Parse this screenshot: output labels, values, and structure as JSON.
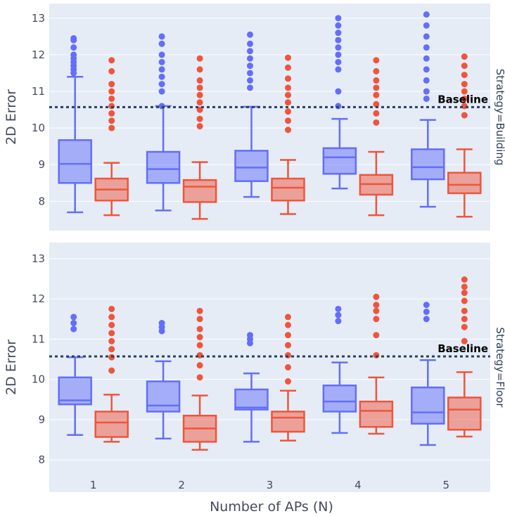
{
  "chart_data": {
    "type": "box",
    "xlabel": "Number of APs (N)",
    "ylabel": "2D Error",
    "categories": [
      "1",
      "2",
      "3",
      "4",
      "5"
    ],
    "ylim": [
      7.2,
      13.4
    ],
    "yticks": [
      8,
      9,
      10,
      11,
      12,
      13
    ],
    "colors": {
      "series_a": "#636efa",
      "series_b": "#ef553b",
      "plot_bg": "#e5ecf6",
      "baseline": "#2a3f5f"
    },
    "annotation": "Baseline",
    "panels": [
      {
        "facet_label": "Strategy=Building",
        "baseline": 10.57,
        "series": [
          {
            "name": "series_a",
            "boxes": [
              {
                "min": 7.7,
                "q1": 8.5,
                "median": 9.02,
                "q3": 9.67,
                "max": 11.4,
                "outliers": [
                  11.5,
                  11.6,
                  11.7,
                  11.8,
                  11.9,
                  12.0,
                  12.2,
                  12.4,
                  12.45
                ]
              },
              {
                "min": 7.75,
                "q1": 8.5,
                "median": 8.88,
                "q3": 9.35,
                "max": 10.6,
                "outliers": [
                  10.6,
                  11.0,
                  11.2,
                  11.4,
                  11.6,
                  11.8,
                  12.0,
                  12.3,
                  12.5
                ]
              },
              {
                "min": 8.12,
                "q1": 8.55,
                "median": 8.92,
                "q3": 9.38,
                "max": 10.58,
                "outliers": [
                  11.1,
                  11.3,
                  11.5,
                  11.7,
                  11.9,
                  12.1,
                  12.3,
                  12.55
                ]
              },
              {
                "min": 8.35,
                "q1": 8.75,
                "median": 9.2,
                "q3": 9.45,
                "max": 10.25,
                "outliers": [
                  10.6,
                  11.0,
                  11.6,
                  11.8,
                  12.0,
                  12.2,
                  12.4,
                  12.6,
                  12.8,
                  13.0
                ]
              },
              {
                "min": 7.85,
                "q1": 8.6,
                "median": 8.93,
                "q3": 9.42,
                "max": 10.22,
                "outliers": [
                  10.8,
                  11.0,
                  11.3,
                  11.6,
                  11.9,
                  12.2,
                  12.5,
                  12.8,
                  13.1
                ]
              }
            ]
          },
          {
            "name": "series_b",
            "boxes": [
              {
                "min": 7.62,
                "q1": 8.02,
                "median": 8.32,
                "q3": 8.62,
                "max": 9.05,
                "outliers": [
                  10.0,
                  10.2,
                  10.4,
                  10.6,
                  10.8,
                  11.0,
                  11.2,
                  11.55,
                  11.85
                ]
              },
              {
                "min": 7.52,
                "q1": 7.98,
                "median": 8.4,
                "q3": 8.58,
                "max": 9.07,
                "outliers": [
                  10.05,
                  10.25,
                  10.5,
                  10.7,
                  10.9,
                  11.1,
                  11.3,
                  11.6,
                  11.9
                ]
              },
              {
                "min": 7.65,
                "q1": 8.02,
                "median": 8.37,
                "q3": 8.62,
                "max": 9.13,
                "outliers": [
                  9.95,
                  10.2,
                  10.45,
                  10.7,
                  10.9,
                  11.1,
                  11.35,
                  11.65,
                  11.92
                ]
              },
              {
                "min": 7.62,
                "q1": 8.18,
                "median": 8.47,
                "q3": 8.72,
                "max": 9.35,
                "outliers": [
                  10.15,
                  10.4,
                  10.65,
                  10.9,
                  11.1,
                  11.3,
                  11.55,
                  11.85
                ]
              },
              {
                "min": 7.58,
                "q1": 8.22,
                "median": 8.45,
                "q3": 8.78,
                "max": 9.42,
                "outliers": [
                  10.35,
                  10.6,
                  10.8,
                  11.0,
                  11.2,
                  11.45,
                  11.7,
                  11.95
                ]
              }
            ]
          }
        ]
      },
      {
        "facet_label": "Strategy=Floor",
        "baseline": 10.57,
        "series": [
          {
            "name": "series_a",
            "boxes": [
              {
                "min": 8.62,
                "q1": 9.38,
                "median": 9.48,
                "q3": 10.05,
                "max": 10.55,
                "outliers": [
                  11.25,
                  11.4,
                  11.55
                ]
              },
              {
                "min": 8.53,
                "q1": 9.2,
                "median": 9.35,
                "q3": 9.95,
                "max": 10.45,
                "outliers": [
                  11.2,
                  11.3,
                  11.4
                ]
              },
              {
                "min": 8.45,
                "q1": 9.25,
                "median": 9.3,
                "q3": 9.75,
                "max": 10.15,
                "outliers": [
                  10.9,
                  11.0,
                  11.1
                ]
              },
              {
                "min": 8.67,
                "q1": 9.2,
                "median": 9.45,
                "q3": 9.85,
                "max": 10.42,
                "outliers": [
                  11.45,
                  11.6,
                  11.75
                ]
              },
              {
                "min": 8.37,
                "q1": 8.9,
                "median": 9.18,
                "q3": 9.8,
                "max": 10.48,
                "outliers": [
                  11.5,
                  11.68,
                  11.85
                ]
              }
            ]
          },
          {
            "name": "series_b",
            "boxes": [
              {
                "min": 8.45,
                "q1": 8.57,
                "median": 8.93,
                "q3": 9.2,
                "max": 9.62,
                "outliers": [
                  10.22,
                  10.55,
                  10.75,
                  10.95,
                  11.15,
                  11.35,
                  11.55,
                  11.75
                ]
              },
              {
                "min": 8.25,
                "q1": 8.45,
                "median": 8.78,
                "q3": 9.1,
                "max": 9.6,
                "outliers": [
                  10.05,
                  10.35,
                  10.6,
                  10.85,
                  11.05,
                  11.25,
                  11.5,
                  11.7
                ]
              },
              {
                "min": 8.48,
                "q1": 8.7,
                "median": 9.05,
                "q3": 9.2,
                "max": 9.72,
                "outliers": [
                  9.95,
                  10.3,
                  10.6,
                  10.85,
                  11.1,
                  11.35,
                  11.55
                ]
              },
              {
                "min": 8.65,
                "q1": 8.82,
                "median": 9.22,
                "q3": 9.45,
                "max": 10.05,
                "outliers": [
                  10.6,
                  11.1,
                  11.5,
                  11.7,
                  11.85,
                  12.05
                ]
              },
              {
                "min": 8.58,
                "q1": 8.75,
                "median": 9.25,
                "q3": 9.55,
                "max": 10.18,
                "outliers": [
                  10.95,
                  11.3,
                  11.5,
                  11.7,
                  11.95,
                  12.15,
                  12.3,
                  12.48
                ]
              }
            ]
          }
        ]
      }
    ]
  }
}
